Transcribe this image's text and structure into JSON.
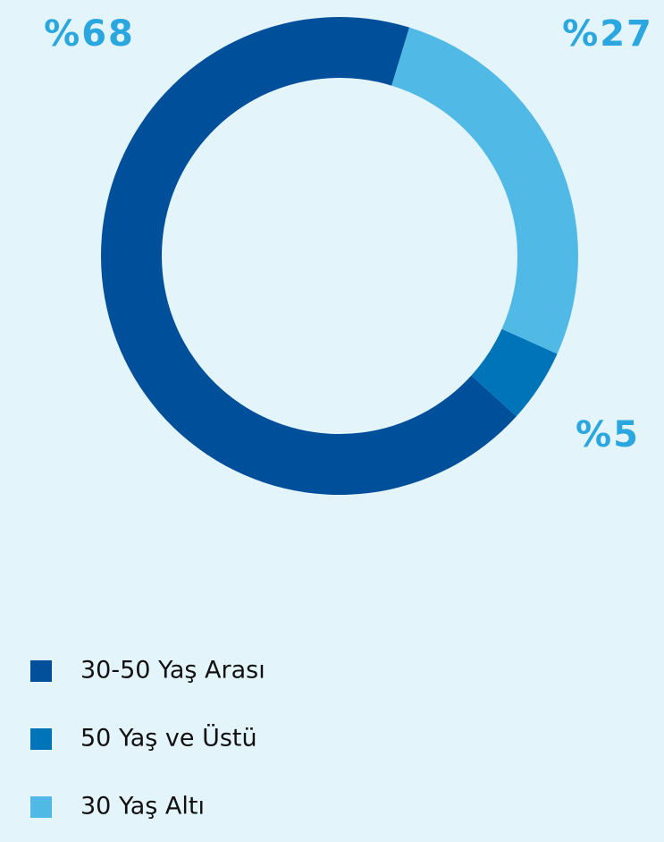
{
  "chart_data": {
    "type": "donut",
    "categories": [
      "30-50 Yaş Arası",
      "50 Yaş ve Üstü",
      "30 Yaş Altı"
    ],
    "values": [
      68,
      5,
      27
    ],
    "value_labels": [
      "%68",
      "%5",
      "%27"
    ],
    "colors": [
      "#004f9a",
      "#0074b8",
      "#50b9e6"
    ],
    "legend": "bottom-left"
  }
}
